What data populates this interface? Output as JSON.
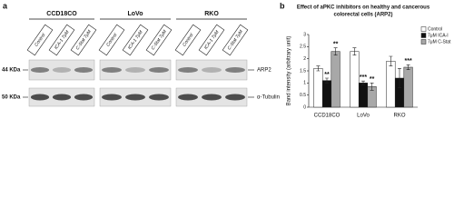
{
  "panel_a": {
    "label": "a",
    "cell_lines": [
      "CCD18CO",
      "LoVo",
      "RKO"
    ],
    "lanes": [
      "Control",
      "ICA-1 7μM",
      "C-Stat 7μM"
    ],
    "rows": [
      {
        "size": "44 KDa",
        "protein": "ARP2"
      },
      {
        "size": "50 KDa",
        "protein": "α-Tubulin"
      }
    ]
  },
  "panel_b": {
    "label": "b"
  },
  "chart_data": {
    "type": "bar",
    "title": [
      "Effect of aPKC inhibitors on healthy and cancerous",
      "colorectal  cells (ARP2)"
    ],
    "y_label": "Band intensity (arbitrary unit)",
    "categories": [
      "CCD18CO",
      "LoVo",
      "RKO"
    ],
    "series": [
      {
        "name": "Control",
        "color": "#ffffff",
        "values": [
          1.6,
          2.3,
          1.9
        ],
        "errors": [
          0.1,
          0.15,
          0.2
        ],
        "significance": [
          null,
          null,
          null
        ]
      },
      {
        "name": "7μM ICA-I",
        "color": "#111111",
        "values": [
          1.1,
          1.0,
          1.2
        ],
        "errors": [
          0.1,
          0.08,
          0.4
        ],
        "significance": [
          "**",
          "***",
          null
        ]
      },
      {
        "name": "7μM C-Stat",
        "color": "#a8a8a8",
        "values": [
          2.3,
          0.85,
          1.65
        ],
        "errors": [
          0.15,
          0.15,
          0.1
        ],
        "significance": [
          "**",
          "**",
          "***"
        ]
      }
    ],
    "ylim": [
      0,
      3
    ],
    "yticks": [
      0,
      0.5,
      1,
      1.5,
      2,
      2.5,
      3
    ],
    "legend": "right"
  }
}
